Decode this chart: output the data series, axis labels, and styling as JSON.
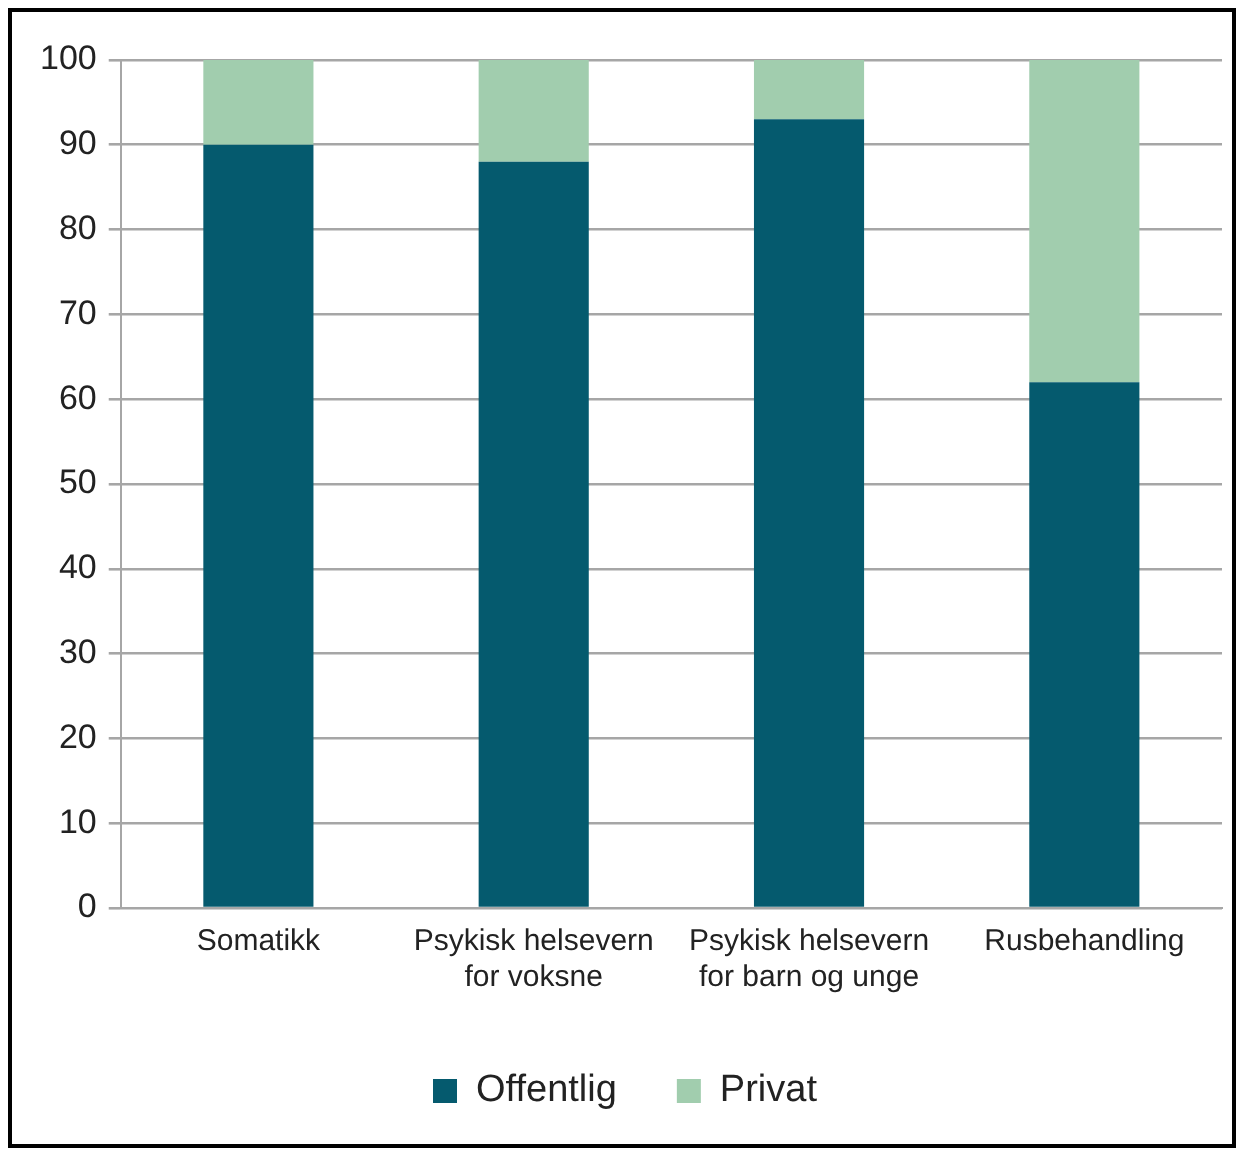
{
  "chart_data": {
    "type": "bar",
    "stacked": true,
    "categories": [
      "Somatikk",
      "Psykisk helsevern for voksne",
      "Psykisk helsevern for barn og unge",
      "Rusbehandling"
    ],
    "series": [
      {
        "name": "Offentlig",
        "color": "#055a6e",
        "values": [
          90,
          88,
          93,
          62
        ]
      },
      {
        "name": "Privat",
        "color": "#a1cdae",
        "values": [
          10,
          12,
          7,
          38
        ]
      }
    ],
    "ylim": [
      0,
      100
    ],
    "yticks": [
      0,
      10,
      20,
      30,
      40,
      50,
      60,
      70,
      80,
      90,
      100
    ],
    "grid": "y",
    "legend": "bottom"
  }
}
